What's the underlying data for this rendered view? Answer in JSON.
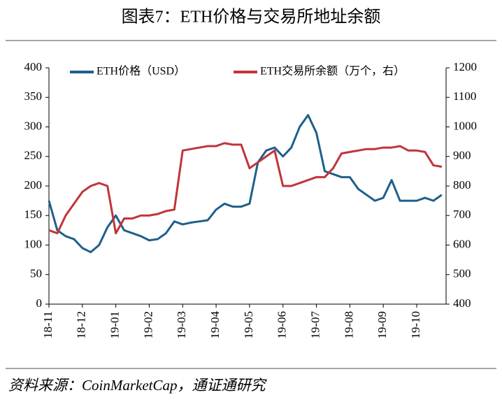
{
  "chart_data": {
    "type": "line",
    "title": "图表7：ETH价格与交易所地址余额",
    "source": "资料来源：CoinMarketCap，通证通研究",
    "categories": [
      "18-11",
      null,
      null,
      null,
      "18-12",
      null,
      null,
      null,
      "19-01",
      null,
      null,
      null,
      "19-02",
      null,
      null,
      null,
      "19-03",
      null,
      null,
      null,
      "19-04",
      null,
      null,
      null,
      "19-05",
      null,
      null,
      null,
      "19-06",
      null,
      null,
      null,
      "19-07",
      null,
      null,
      null,
      "19-08",
      null,
      null,
      null,
      "19-09",
      null,
      null,
      null,
      "19-10",
      null,
      null,
      null
    ],
    "series": [
      {
        "name": "ETH价格（USD）",
        "color": "#1f5f8b",
        "axis": "y",
        "values": [
          175,
          125,
          115,
          110,
          95,
          88,
          100,
          130,
          150,
          125,
          120,
          115,
          108,
          110,
          120,
          140,
          135,
          138,
          140,
          142,
          160,
          170,
          165,
          165,
          170,
          240,
          260,
          265,
          250,
          265,
          300,
          320,
          290,
          225,
          220,
          215,
          215,
          195,
          185,
          175,
          180,
          210,
          175,
          175,
          175,
          180,
          175,
          185
        ]
      },
      {
        "name": "ETH交易所余额（万个，右）",
        "color": "#c0343a",
        "axis": "y2",
        "values": [
          650,
          640,
          700,
          740,
          780,
          800,
          810,
          800,
          640,
          690,
          690,
          700,
          700,
          705,
          715,
          720,
          920,
          925,
          930,
          935,
          935,
          945,
          940,
          940,
          860,
          880,
          900,
          920,
          800,
          800,
          810,
          820,
          830,
          830,
          860,
          910,
          915,
          920,
          925,
          925,
          930,
          930,
          935,
          920,
          920,
          915,
          870,
          865
        ]
      }
    ],
    "ylim": [
      0,
      400
    ],
    "yticks": [
      0,
      50,
      100,
      150,
      200,
      250,
      300,
      350,
      400
    ],
    "y2lim": [
      400,
      1200
    ],
    "y2ticks": [
      400,
      500,
      600,
      700,
      800,
      900,
      1000,
      1100,
      1200
    ]
  }
}
